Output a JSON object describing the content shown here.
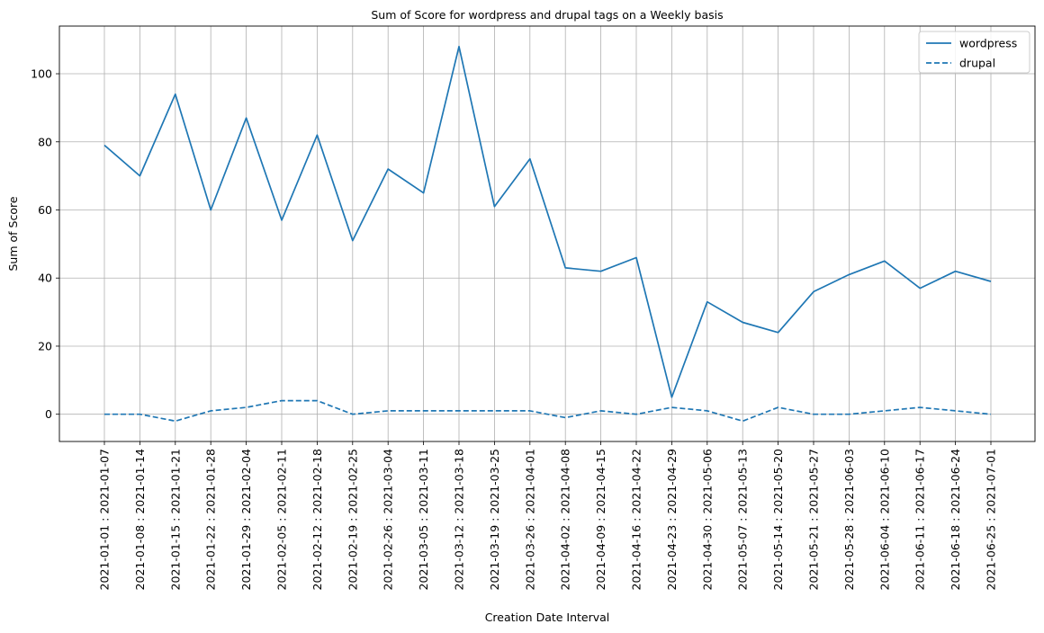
{
  "chart_data": {
    "type": "line",
    "title": "Sum of Score for wordpress and drupal tags on a Weekly basis",
    "xlabel": "Creation Date Interval",
    "ylabel": "Sum of Score",
    "ylim": [
      -8,
      114
    ],
    "yticks": [
      0,
      20,
      40,
      60,
      80,
      100
    ],
    "grid": true,
    "legend_position": "top-right",
    "categories": [
      "2021-01-01 : 2021-01-07",
      "2021-01-08 : 2021-01-14",
      "2021-01-15 : 2021-01-21",
      "2021-01-22 : 2021-01-28",
      "2021-01-29 : 2021-02-04",
      "2021-02-05 : 2021-02-11",
      "2021-02-12 : 2021-02-18",
      "2021-02-19 : 2021-02-25",
      "2021-02-26 : 2021-03-04",
      "2021-03-05 : 2021-03-11",
      "2021-03-12 : 2021-03-18",
      "2021-03-19 : 2021-03-25",
      "2021-03-26 : 2021-04-01",
      "2021-04-02 : 2021-04-08",
      "2021-04-09 : 2021-04-15",
      "2021-04-16 : 2021-04-22",
      "2021-04-23 : 2021-04-29",
      "2021-04-30 : 2021-05-06",
      "2021-05-07 : 2021-05-13",
      "2021-05-14 : 2021-05-20",
      "2021-05-21 : 2021-05-27",
      "2021-05-28 : 2021-06-03",
      "2021-06-04 : 2021-06-10",
      "2021-06-11 : 2021-06-17",
      "2021-06-18 : 2021-06-24",
      "2021-06-25 : 2021-07-01"
    ],
    "series": [
      {
        "name": "wordpress",
        "color": "#1f77b4",
        "dash": "solid",
        "values": [
          79,
          70,
          94,
          60,
          87,
          57,
          82,
          51,
          72,
          65,
          108,
          61,
          75,
          43,
          42,
          46,
          5,
          33,
          27,
          24,
          36,
          41,
          45,
          37,
          42,
          39
        ]
      },
      {
        "name": "drupal",
        "color": "#1f77b4",
        "dash": "dashed",
        "values": [
          0,
          0,
          -2,
          1,
          2,
          4,
          4,
          0,
          1,
          1,
          1,
          1,
          1,
          -1,
          1,
          0,
          2,
          1,
          -2,
          2,
          0,
          0,
          1,
          2,
          1,
          0
        ]
      }
    ]
  }
}
